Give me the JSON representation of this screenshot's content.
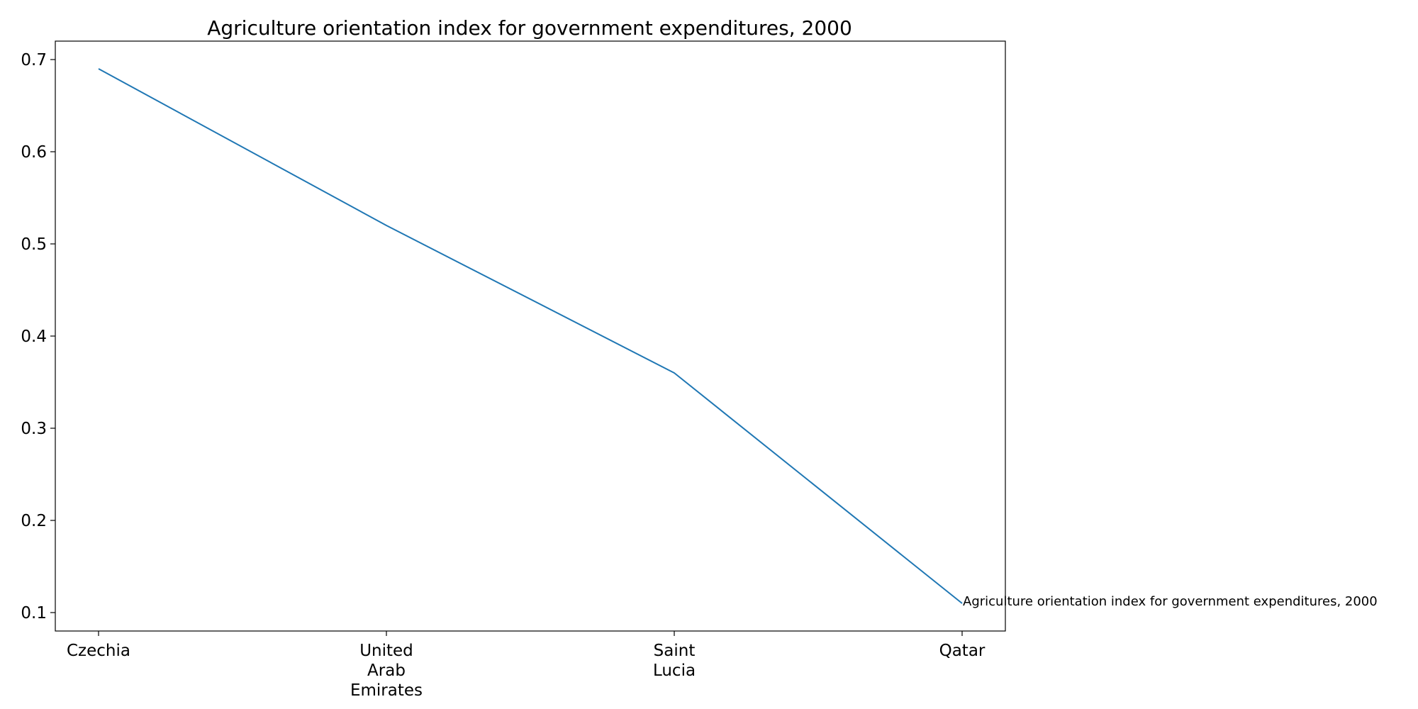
{
  "chart_data": {
    "type": "line",
    "title": "Agriculture orientation index for government expenditures, 2000",
    "xlabel": "",
    "ylabel": "",
    "categories": [
      "Czechia",
      "United Arab Emirates",
      "Saint Lucia",
      "Qatar"
    ],
    "category_tick_lines": [
      [
        "Czechia"
      ],
      [
        "United",
        "Arab",
        "Emirates"
      ],
      [
        "Saint",
        "Lucia"
      ],
      [
        "Qatar"
      ]
    ],
    "series": [
      {
        "name": "Agriculture orientation index for government expenditures, 2000",
        "values": [
          0.69,
          0.52,
          0.36,
          0.11
        ],
        "color": "#1f77b4"
      }
    ],
    "y_ticks": [
      "0.1",
      "0.2",
      "0.3",
      "0.4",
      "0.5",
      "0.6",
      "0.7"
    ],
    "ylim": [
      0.08,
      0.72
    ],
    "grid": false,
    "legend": "none",
    "end_label": "Agriculture orientation index for government expenditures, 2000"
  }
}
